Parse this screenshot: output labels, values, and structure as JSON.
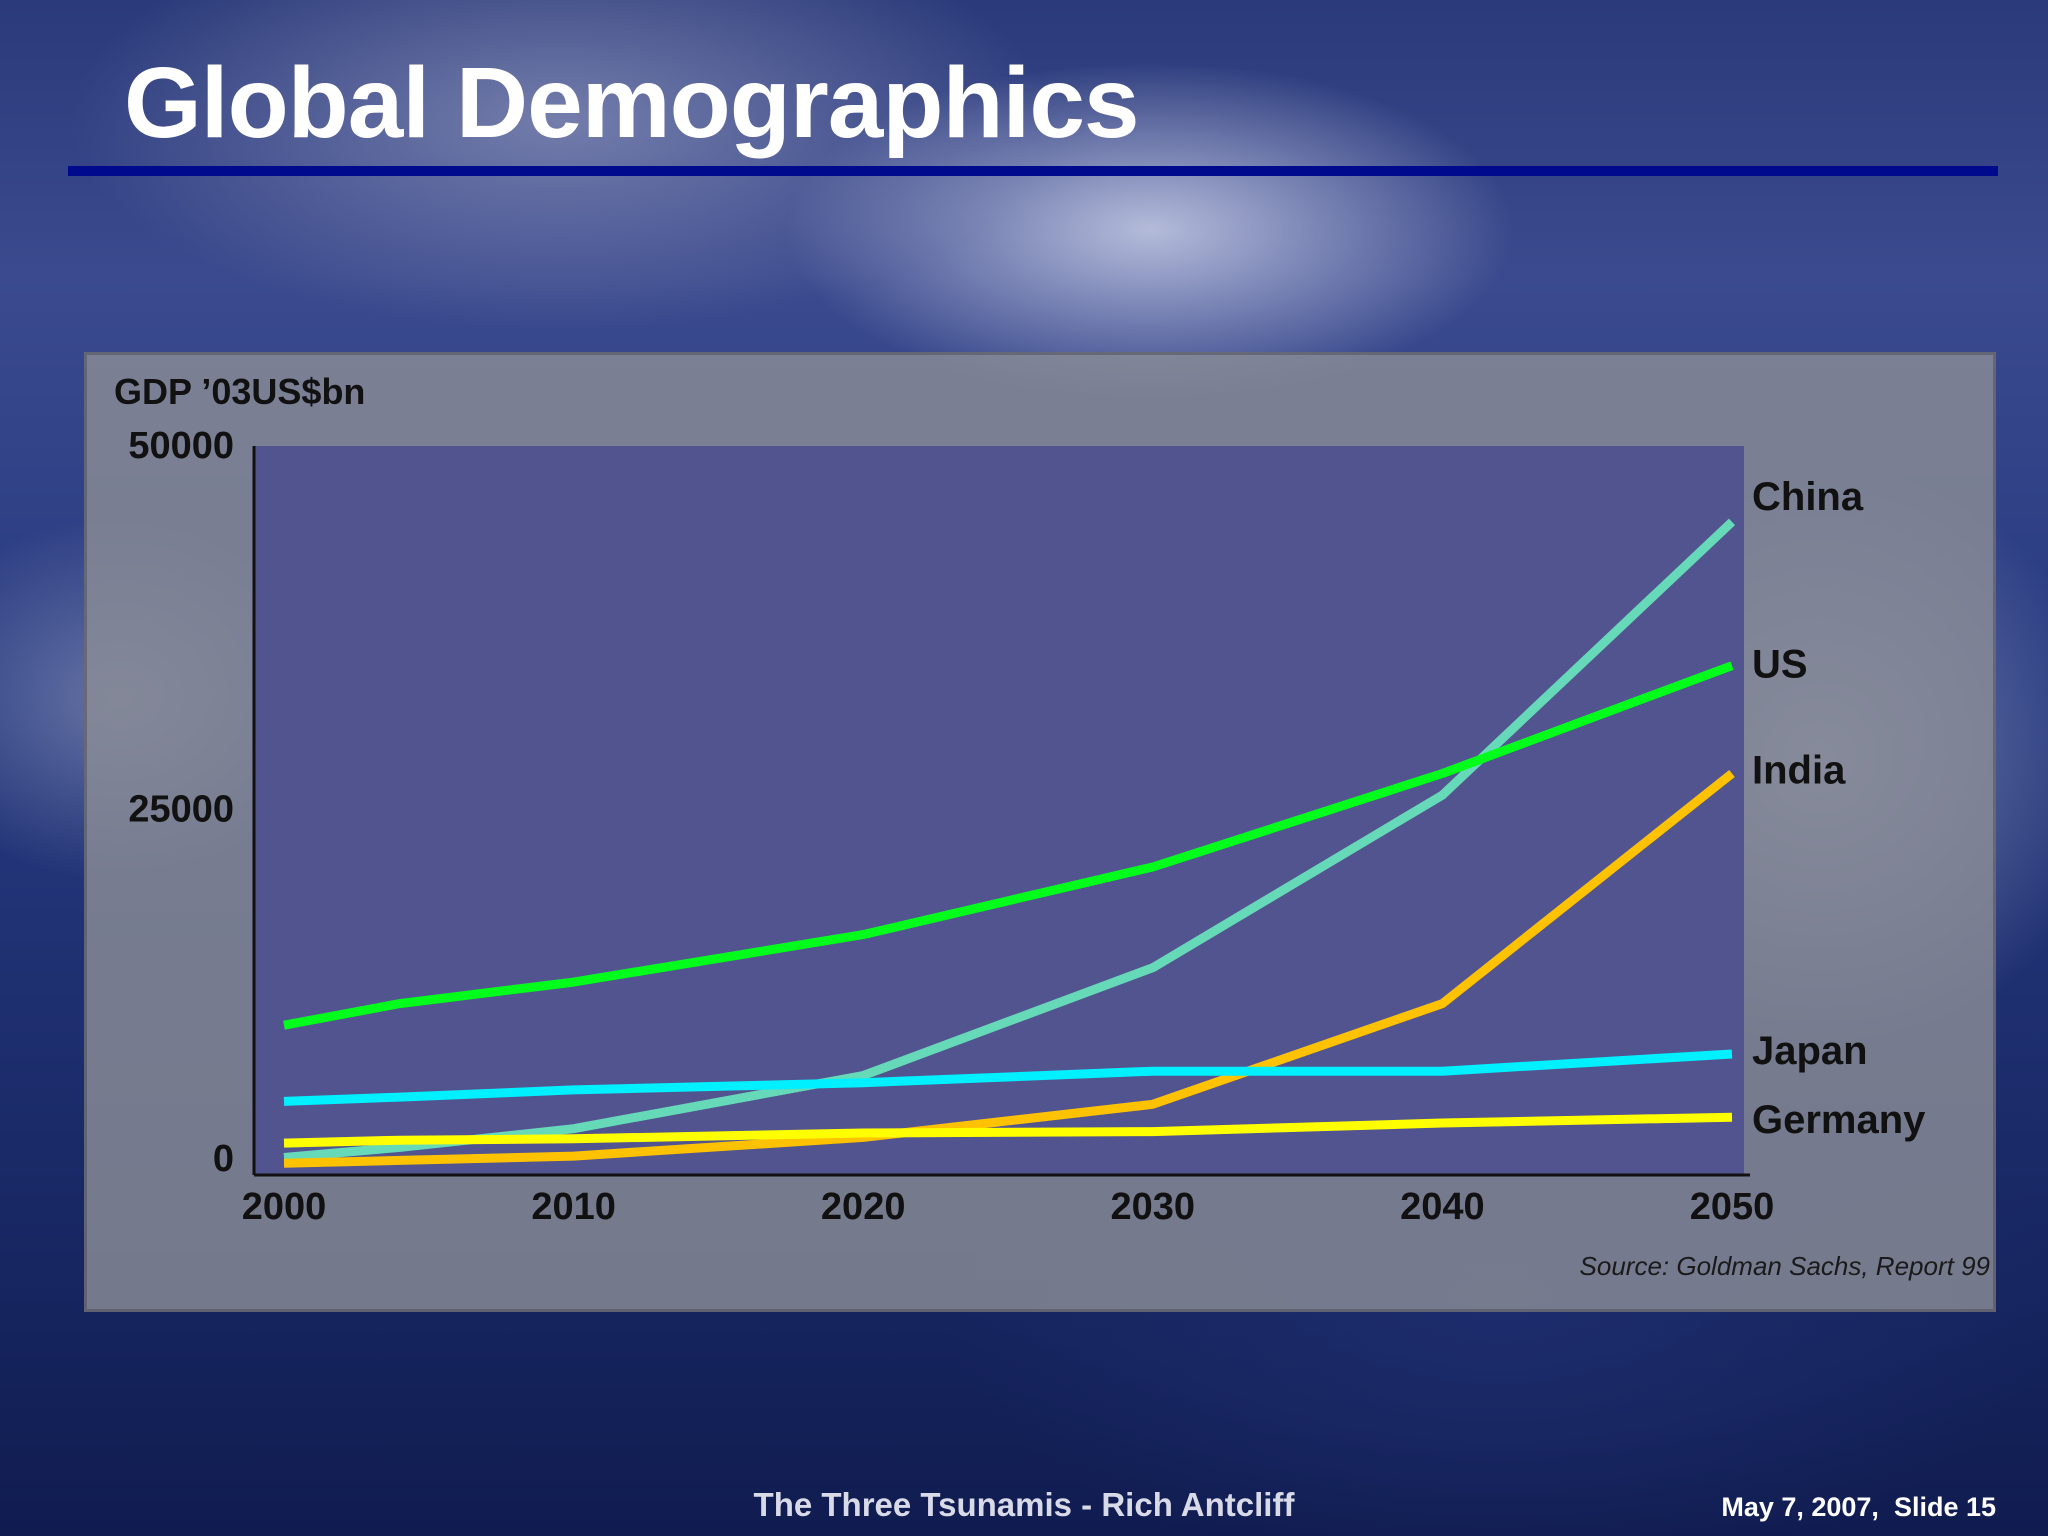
{
  "slide": {
    "title": "Global Demographics",
    "footer_left": "The Three Tsunamis - Rich Antcliff",
    "footer_right": "May 7, 2007,  Slide 15"
  },
  "chart_data": {
    "type": "line",
    "title": "",
    "ylabel": "GDP ’03US$bn",
    "xlabel": "",
    "x": [
      2000,
      2004,
      2010,
      2020,
      2030,
      2040,
      2050
    ],
    "xticks": [
      2000,
      2010,
      2020,
      2030,
      2040,
      2050
    ],
    "xtick_labels": [
      "2000",
      "2010",
      "2020",
      "2030",
      "2040",
      "2050"
    ],
    "yticks": [
      0,
      25000,
      50000
    ],
    "ytick_labels": [
      "0",
      "25000",
      "50000"
    ],
    "xlim": [
      2000,
      2050
    ],
    "ylim": [
      0,
      50000
    ],
    "grid": false,
    "legend": "inline labels at right end of lines",
    "plot_background": "#52548f",
    "series": [
      {
        "name": "China",
        "color": "#66d9b8",
        "values": [
          800,
          1500,
          2800,
          6500,
          14000,
          26000,
          45000
        ]
      },
      {
        "name": "US",
        "color": "#00ff1a",
        "values": [
          10000,
          11500,
          13000,
          16300,
          21000,
          27500,
          35000
        ]
      },
      {
        "name": "India",
        "color": "#ffc200",
        "values": [
          400,
          600,
          900,
          2200,
          4500,
          11500,
          27500
        ]
      },
      {
        "name": "Japan",
        "color": "#00f0ff",
        "values": [
          4700,
          5000,
          5500,
          6000,
          6800,
          6800,
          8000
        ]
      },
      {
        "name": "Germany",
        "color": "#ffff00",
        "values": [
          1800,
          2000,
          2100,
          2500,
          2600,
          3200,
          3600
        ]
      }
    ],
    "source": "Source: Goldman Sachs, Report 99"
  }
}
